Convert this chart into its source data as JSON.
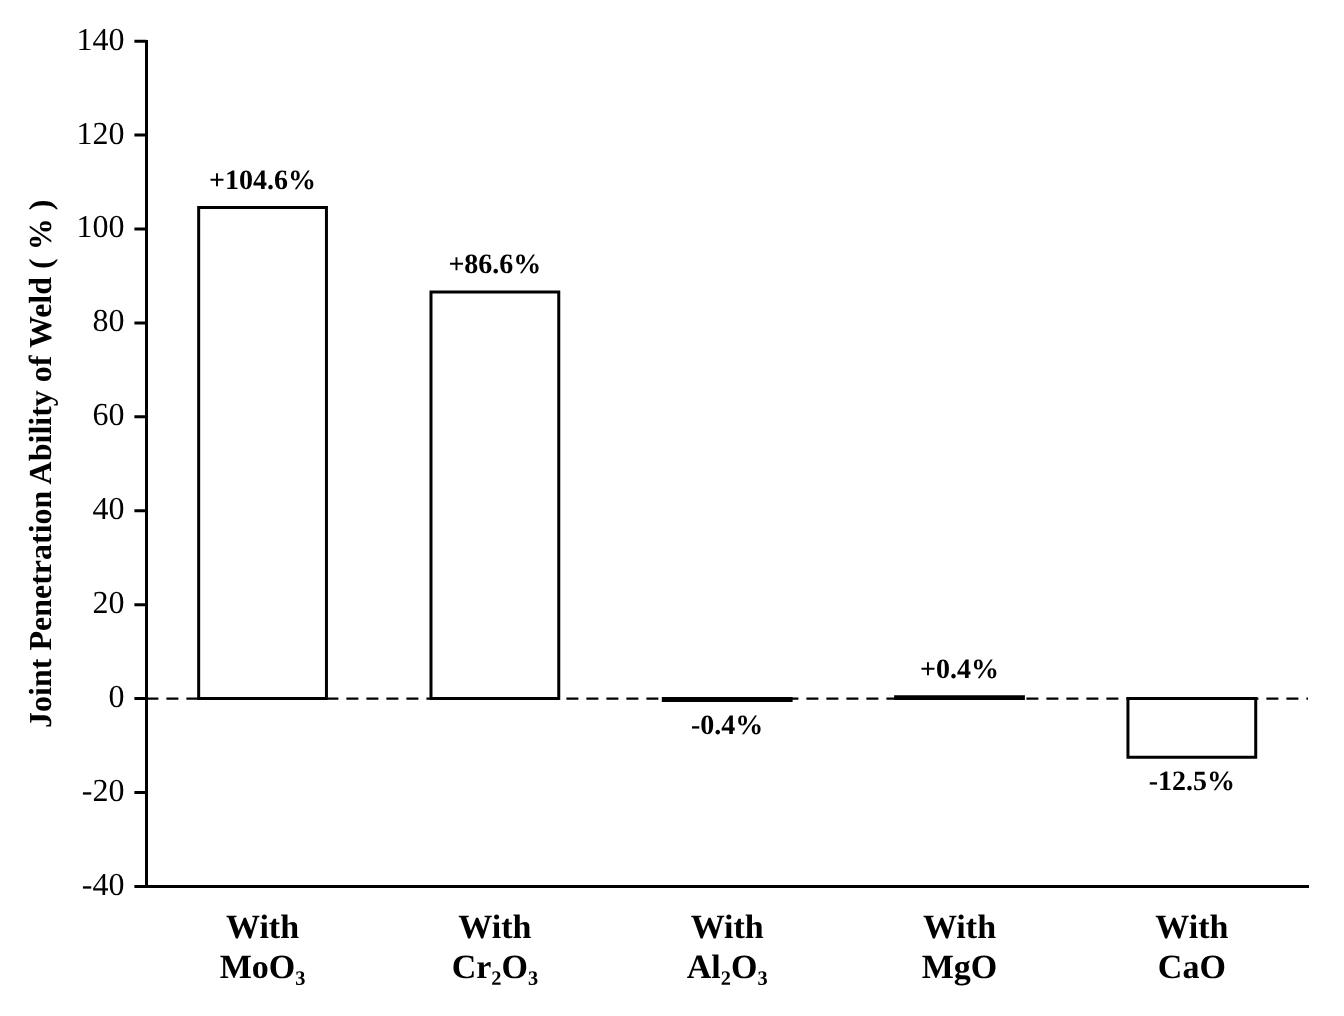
{
  "chart_data": {
    "type": "bar",
    "ylabel": "Joint Penetration Ability of Weld ( % )",
    "categories": [
      "With MoO₃",
      "With Cr₂O₃",
      "With Al₂O₃",
      "With MgO",
      "With CaO"
    ],
    "values": [
      104.6,
      86.6,
      -0.4,
      0.4,
      -12.5
    ],
    "value_labels": [
      "+104.6%",
      "+86.6%",
      "-0.4%",
      "+0.4%",
      "-12.5%"
    ],
    "color": "#ffffff",
    "ylim": [
      -40,
      140
    ],
    "yticks": [
      -40,
      -20,
      0,
      20,
      40,
      60,
      80,
      100,
      120,
      140
    ],
    "ref_lines": [
      {
        "axis": "y",
        "value": 0,
        "color": "#000000",
        "line_style": "dashed"
      }
    ],
    "grid": false,
    "legend": false
  }
}
